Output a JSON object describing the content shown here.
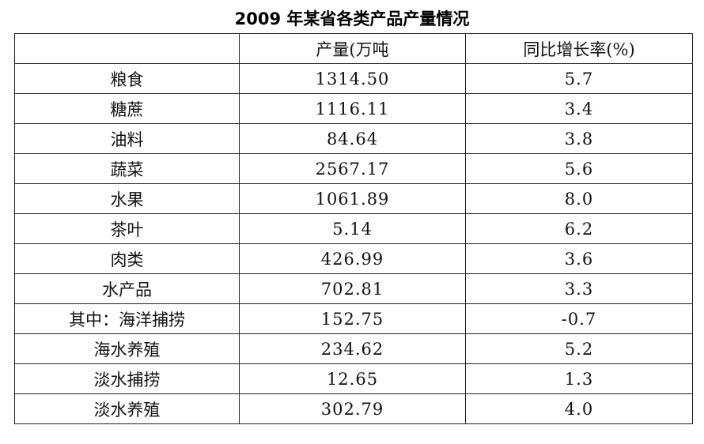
{
  "title": "2009 年某省各类产品产量情况",
  "table": {
    "headers": [
      "",
      "产量(万吨",
      "同比增长率(%)"
    ],
    "rows": [
      {
        "name": "粮食",
        "output": "1314.50",
        "growth": "5.7"
      },
      {
        "name": "糖蔗",
        "output": "1116.11",
        "growth": "3.4"
      },
      {
        "name": "油料",
        "output": "84.64",
        "growth": "3.8"
      },
      {
        "name": "蔬菜",
        "output": "2567.17",
        "growth": "5.6"
      },
      {
        "name": "水果",
        "output": "1061.89",
        "growth": "8.0"
      },
      {
        "name": "茶叶",
        "output": "5.14",
        "growth": "6.2"
      },
      {
        "name": "肉类",
        "output": "426.99",
        "growth": "3.6"
      },
      {
        "name": "水产品",
        "output": "702.81",
        "growth": "3.3"
      },
      {
        "name": "其中：海洋捕捞",
        "output": "152.75",
        "growth": "-0.7"
      },
      {
        "name": "海水养殖",
        "output": "234.62",
        "growth": "5.2"
      },
      {
        "name": "淡水捕捞",
        "output": "12.65",
        "growth": "1.3"
      },
      {
        "name": "淡水养殖",
        "output": "302.79",
        "growth": "4.0"
      }
    ]
  }
}
